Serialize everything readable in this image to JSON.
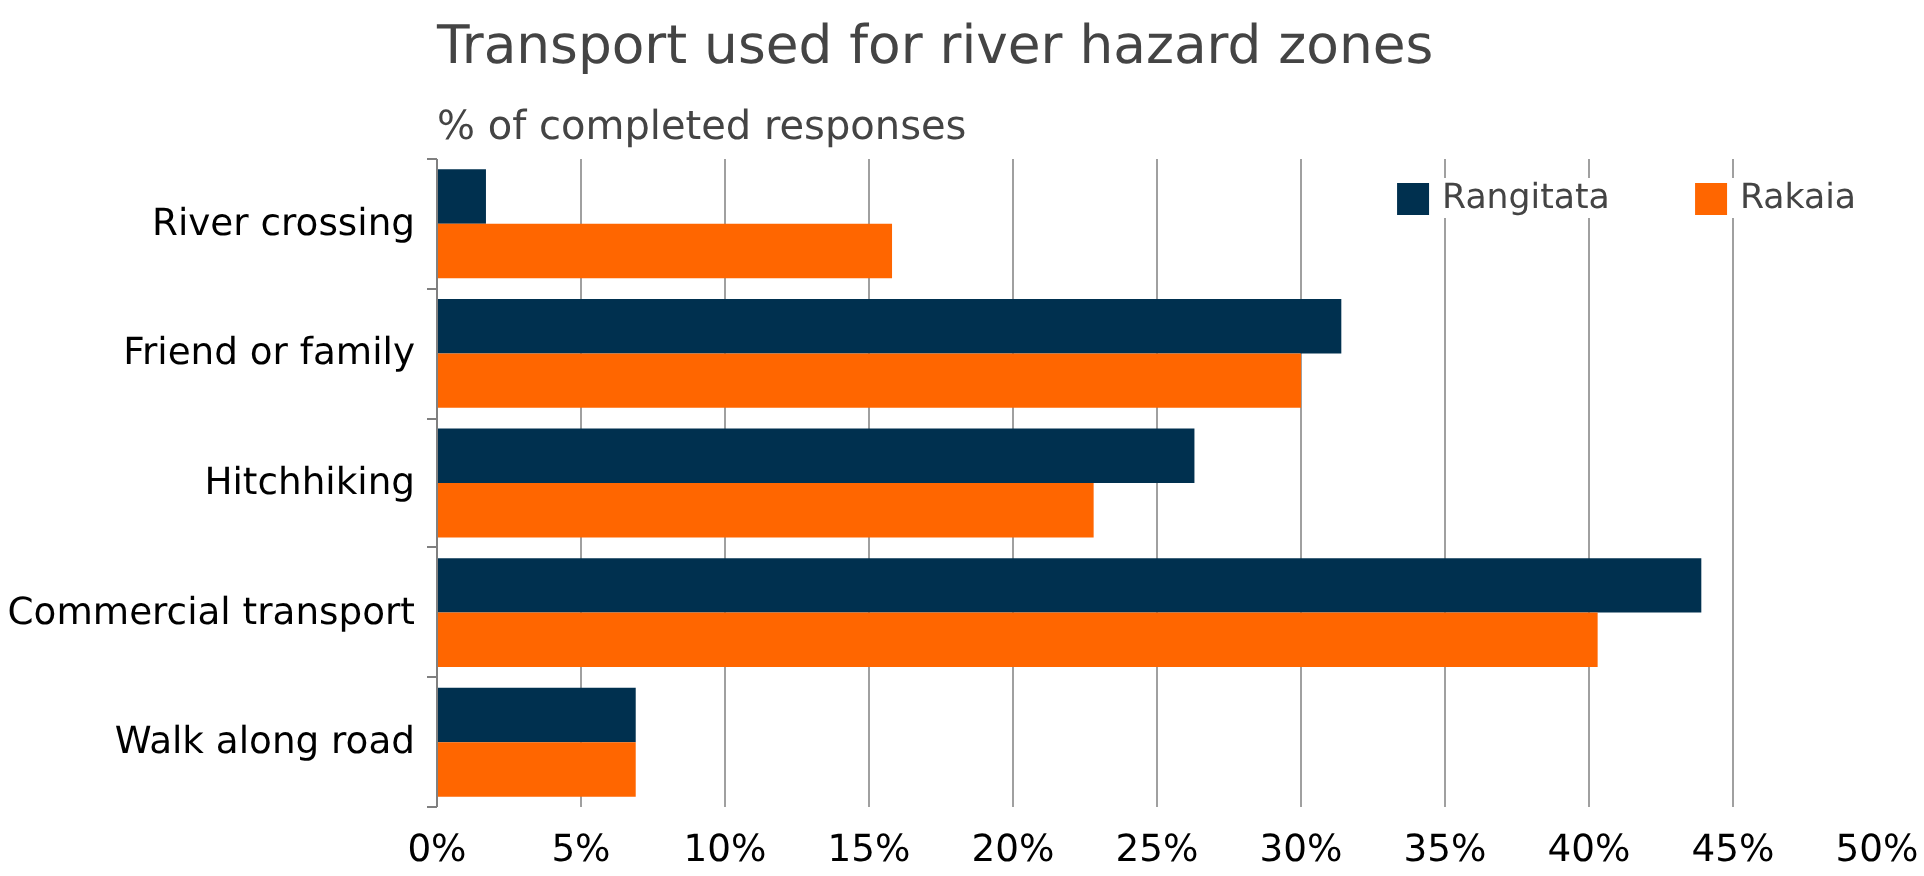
{
  "chart_data": {
    "type": "bar",
    "orientation": "horizontal",
    "title": "Transport used for river hazard zones",
    "subtitle": "% of completed responses",
    "categories": [
      "River crossing",
      "Friend or family",
      "Hitchhiking",
      "Commercial transport",
      "Walk along road"
    ],
    "series": [
      {
        "name": "Rangitata",
        "color": "#00304f",
        "values": [
          1.7,
          31.4,
          26.3,
          43.9,
          6.9
        ]
      },
      {
        "name": "Rakaia",
        "color": "#ff6600",
        "values": [
          15.8,
          30.0,
          22.8,
          40.3,
          6.9
        ]
      }
    ],
    "xlim": [
      0,
      50
    ],
    "xticks": [
      {
        "value": 0,
        "label": "0%"
      },
      {
        "value": 5,
        "label": "5%"
      },
      {
        "value": 10,
        "label": "10%"
      },
      {
        "value": 15,
        "label": "15%"
      },
      {
        "value": 20,
        "label": "20%"
      },
      {
        "value": 25,
        "label": "25%"
      },
      {
        "value": 30,
        "label": "30%"
      },
      {
        "value": 35,
        "label": "35%"
      },
      {
        "value": 40,
        "label": "40%"
      },
      {
        "value": 45,
        "label": "45%"
      },
      {
        "value": 50,
        "label": "50%"
      }
    ],
    "grid": "x",
    "legend": "top right"
  }
}
